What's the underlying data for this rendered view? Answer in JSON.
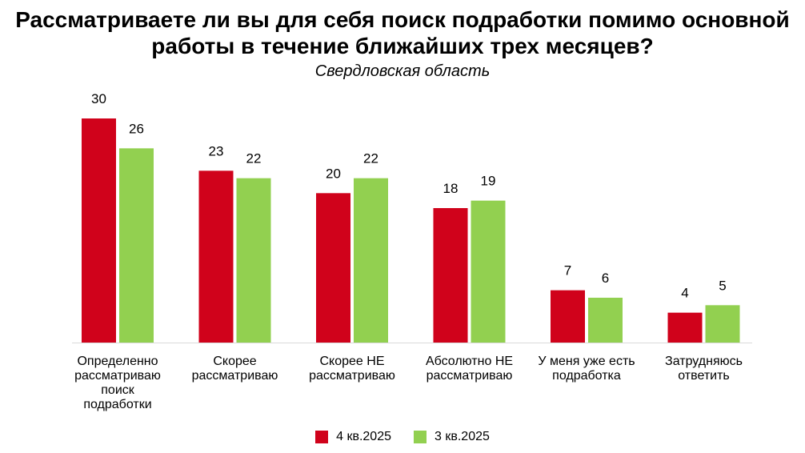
{
  "chart_data": {
    "type": "bar",
    "title": "Рассматриваете ли вы для себя поиск подработки помимо основной работы в течение ближайших трех месяцев?",
    "subtitle": "Свердловская область",
    "categories": [
      [
        "Определенно",
        "рассматриваю",
        "поиск",
        "подработки"
      ],
      [
        "Скорее",
        "рассматриваю"
      ],
      [
        "Скорее НЕ",
        "рассматриваю"
      ],
      [
        "Абсолютно НЕ",
        "рассматриваю"
      ],
      [
        "У меня уже есть",
        "подработка"
      ],
      [
        "Затрудняюсь",
        "ответить"
      ]
    ],
    "series": [
      {
        "name": "4 кв.2025",
        "color": "#d0021b",
        "values": [
          30,
          23,
          20,
          18,
          7,
          4
        ]
      },
      {
        "name": "3 кв.2025",
        "color": "#92d050",
        "values": [
          26,
          22,
          22,
          19,
          6,
          5
        ]
      }
    ],
    "ylim": [
      0,
      30
    ],
    "grid": false,
    "legend_position": "bottom-center"
  }
}
